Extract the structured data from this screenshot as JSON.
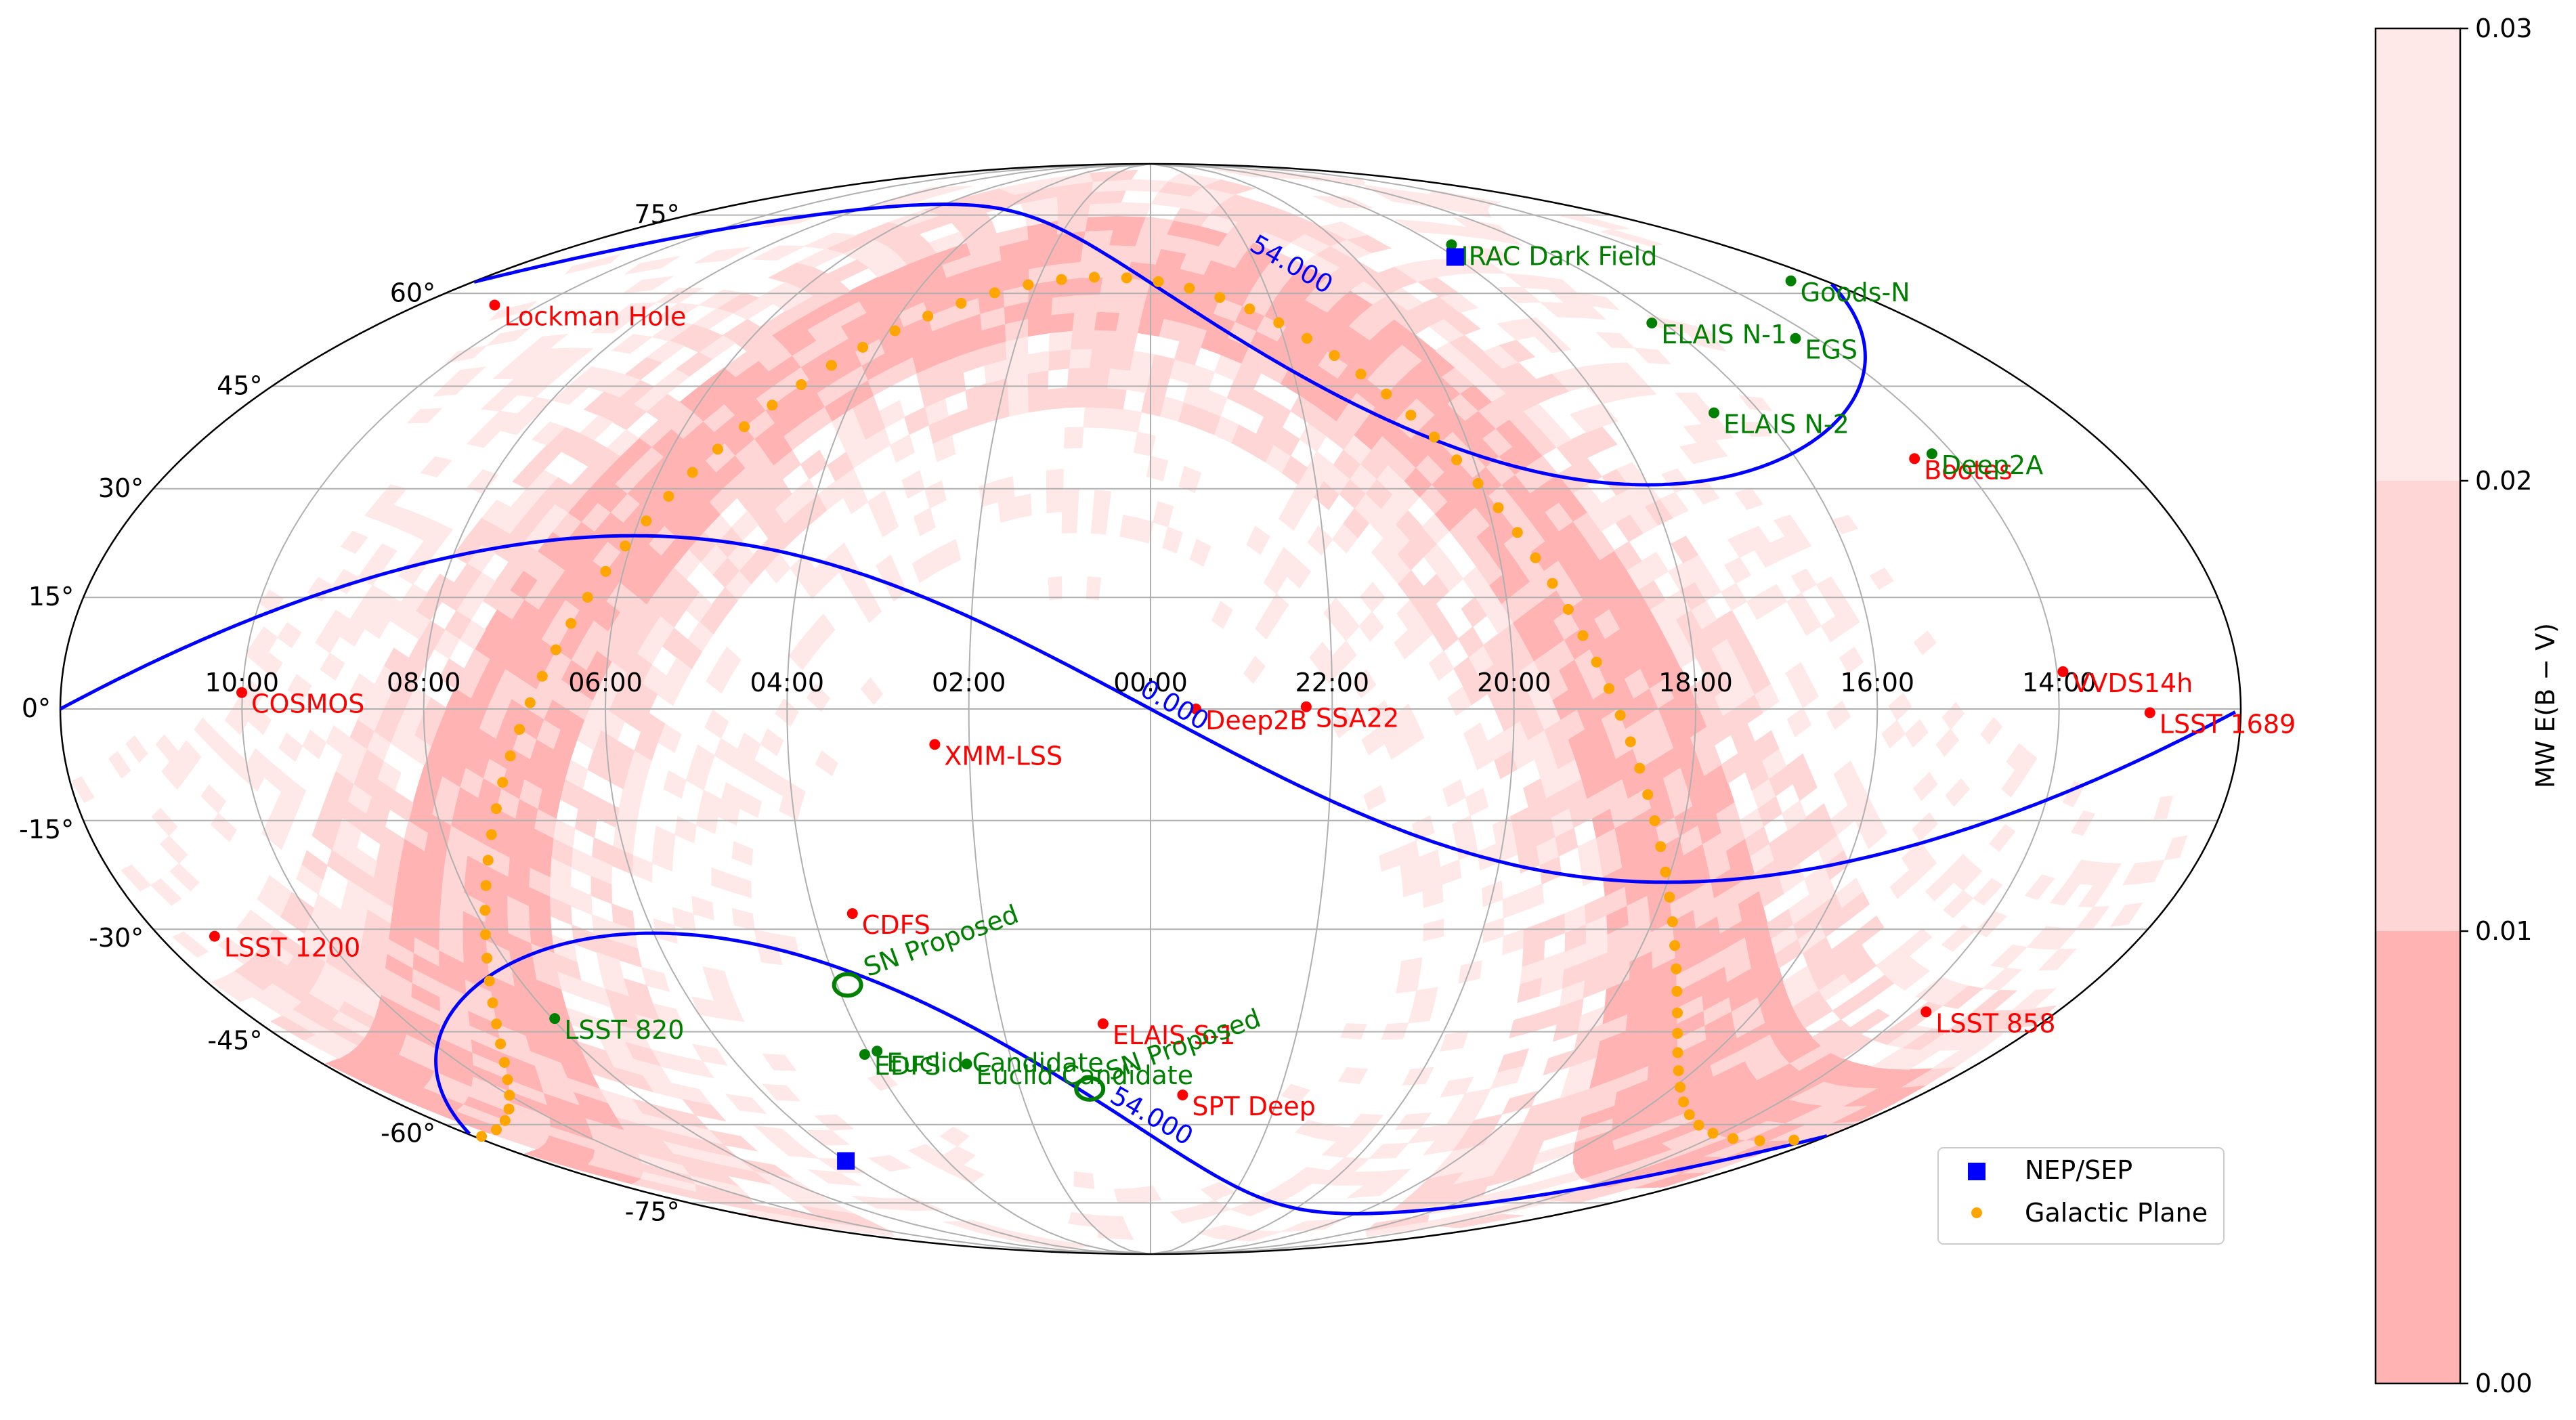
{
  "map": {
    "projection": "Mollweide",
    "ra_labels": [
      "10:00",
      "08:00",
      "06:00",
      "04:00",
      "02:00",
      "00:00",
      "22:00",
      "20:00",
      "18:00",
      "16:00",
      "14:00"
    ],
    "dec_labels_north": [
      "0°",
      "15°",
      "30°",
      "45°",
      "60°",
      "75°"
    ],
    "dec_labels_south": [
      "-15°",
      "-30°",
      "-45°",
      "-60°",
      "-75°"
    ]
  },
  "fields_red": [
    {
      "name": "Lockman Hole",
      "ra": 161.25,
      "dec": 58
    },
    {
      "name": "COSMOS",
      "ra": 150.1,
      "dec": 2.2
    },
    {
      "name": "XMM-LSS",
      "ra": 35.7,
      "dec": -4.75
    },
    {
      "name": "Deep2B",
      "ra": 352.5,
      "dec": 0
    },
    {
      "name": "SSA22",
      "ra": 334.3,
      "dec": 0.3
    },
    {
      "name": "Bootes",
      "ra": 218,
      "dec": 34.3
    },
    {
      "name": "VVDS14h",
      "ra": 209,
      "dec": 5
    },
    {
      "name": "LSST 1689",
      "ra": 195,
      "dec": -0.5
    },
    {
      "name": "LSST 1200",
      "ra": 170,
      "dec": -31
    },
    {
      "name": "LSST 858",
      "ra": 206,
      "dec": -42
    },
    {
      "name": "CDFS",
      "ra": 53.1,
      "dec": -27.8
    },
    {
      "name": "ELAIS S-1",
      "ra": 9.6,
      "dec": -43.8
    },
    {
      "name": "SPT Deep",
      "ra": 352.5,
      "dec": -55
    }
  ],
  "fields_green": [
    {
      "name": "IRAC Dark Field",
      "ra": 265.2,
      "dec": 68.9
    },
    {
      "name": "Goods-N",
      "ra": 189.2,
      "dec": 62.2
    },
    {
      "name": "ELAIS N-1",
      "ra": 242.8,
      "dec": 55
    },
    {
      "name": "EGS",
      "ra": 214.8,
      "dec": 52.5
    },
    {
      "name": "ELAIS N-2",
      "ra": 249.2,
      "dec": 41
    },
    {
      "name": "Deep2A",
      "ra": 214,
      "dec": 35
    },
    {
      "name": "LSST 820",
      "ra": 119.5,
      "dec": -43
    },
    {
      "name": "EDFS",
      "ra": 61,
      "dec": -48.5
    },
    {
      "name": "Euclid Candidate",
      "ra": 58,
      "dec": -48
    },
    {
      "name": "Euclid Candidate",
      "ra": 40,
      "dec": -50
    }
  ],
  "sn_proposed": [
    {
      "name": "SN Proposed",
      "ra": 58,
      "dec": -38
    },
    {
      "name": "SN Proposed",
      "ra": 14,
      "dec": -54
    }
  ],
  "nep_sep": [
    {
      "ra": 270,
      "dec": 66.56
    },
    {
      "ra": 90,
      "dec": -66.56
    }
  ],
  "contours": {
    "label": "54.000",
    "center_label": "0.000"
  },
  "legend": {
    "nep_label": "NEP/SEP",
    "galactic_label": "Galactic Plane"
  },
  "colorbar": {
    "label": "MW E(B − V)",
    "ticks": [
      "0.00",
      "0.01",
      "0.02",
      "0.03"
    ],
    "colors": [
      "#ffb3b3",
      "#ffd6d6",
      "#ffe8e8"
    ]
  },
  "colors": {
    "red_field": "#ff0000",
    "green_field": "#008000",
    "contour": "#0000ff",
    "galactic": "#ffa500",
    "grid": "#b0b0b0",
    "dust": "#ffc9c9"
  }
}
